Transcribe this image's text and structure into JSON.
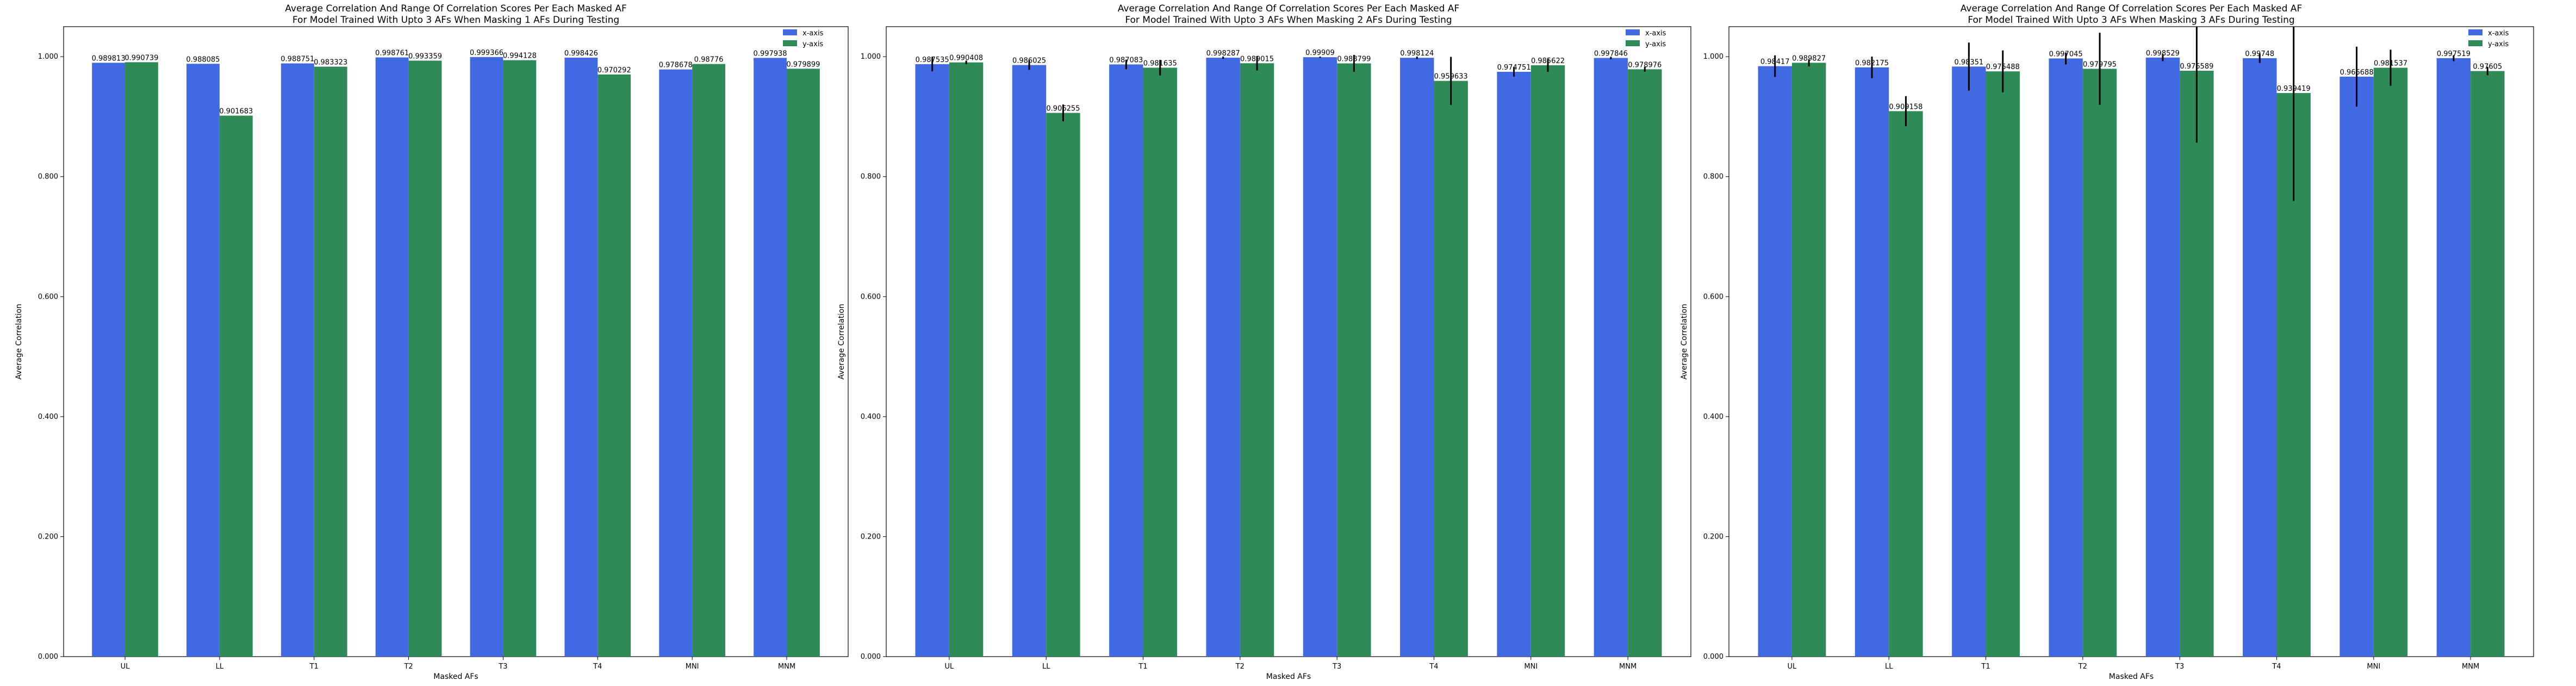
{
  "chart_data": [
    {
      "type": "bar",
      "title": "Average Correlation And Range Of Correlation Scores Per Each Masked AF",
      "subtitle": "For Model Trained With Upto 3 AFs When Masking 1 AFs During Testing",
      "xlabel": "Masked AFs",
      "ylabel": "Average Correlation",
      "ylim": [
        0,
        1.05
      ],
      "yticks": [
        "0.000",
        "0.200",
        "0.400",
        "0.600",
        "0.800",
        "1.000"
      ],
      "categories": [
        "UL",
        "LL",
        "T1",
        "T2",
        "T3",
        "T4",
        "MNI",
        "MNM"
      ],
      "legend_position": "top-right",
      "series": [
        {
          "name": "x-axis",
          "color": "#4169E1",
          "values": [
            0.989813,
            0.988085,
            0.988751,
            0.998761,
            0.999366,
            0.998426,
            0.978678,
            0.997938
          ],
          "labels": [
            "0.989813",
            "0.988085",
            "0.988751",
            "0.998761",
            "0.999366",
            "0.998426",
            "0.978678",
            "0.997938"
          ],
          "error": [
            0,
            0,
            0,
            0,
            0,
            0,
            0,
            0
          ]
        },
        {
          "name": "y-axis",
          "color": "#2E8B57",
          "values": [
            0.990739,
            0.901683,
            0.983323,
            0.993359,
            0.994128,
            0.970292,
            0.98776,
            0.979899
          ],
          "labels": [
            "0.990739",
            "0.901683",
            "0.983323",
            "0.993359",
            "0.994128",
            "0.970292",
            "0.98776",
            "0.979899"
          ],
          "error": [
            0,
            0,
            0,
            0,
            0,
            0,
            0,
            0
          ]
        }
      ]
    },
    {
      "type": "bar",
      "title": "Average Correlation And Range Of Correlation Scores Per Each Masked AF",
      "subtitle": "For Model Trained With Upto 3 AFs When Masking 2 AFs During Testing",
      "xlabel": "Masked AFs",
      "ylabel": "Average Correlation",
      "ylim": [
        0,
        1.05
      ],
      "yticks": [
        "0.000",
        "0.200",
        "0.400",
        "0.600",
        "0.800",
        "1.000"
      ],
      "categories": [
        "UL",
        "LL",
        "T1",
        "T2",
        "T3",
        "T4",
        "MNI",
        "MNM"
      ],
      "legend_position": "top-right",
      "series": [
        {
          "name": "x-axis",
          "color": "#4169E1",
          "values": [
            0.987535,
            0.986025,
            0.987083,
            0.998287,
            0.99909,
            0.998124,
            0.974751,
            0.997846
          ],
          "labels": [
            "0.987535",
            "0.986025",
            "0.987083",
            "0.998287",
            "0.99909",
            "0.998124",
            "0.974751",
            "0.997846"
          ],
          "error": [
            0.012,
            0.008,
            0.008,
            0.002,
            0.001,
            0.002,
            0.008,
            0.002
          ]
        },
        {
          "name": "y-axis",
          "color": "#2E8B57",
          "values": [
            0.990408,
            0.906255,
            0.981635,
            0.989015,
            0.988799,
            0.959633,
            0.985622,
            0.978976
          ],
          "labels": [
            "0.990408",
            "0.906255",
            "0.981635",
            "0.989015",
            "0.988799",
            "0.959633",
            "0.985622",
            "0.978976"
          ],
          "error": [
            0.003,
            0.014,
            0.013,
            0.012,
            0.014,
            0.04,
            0.011,
            0.004
          ]
        }
      ]
    },
    {
      "type": "bar",
      "title": "Average Correlation And Range Of Correlation Scores Per Each Masked AF",
      "subtitle": "For Model Trained With Upto 3 AFs When Masking 3 AFs During Testing",
      "xlabel": "Masked AFs",
      "ylabel": "Average Correlation",
      "ylim": [
        0,
        1.05
      ],
      "yticks": [
        "0.000",
        "0.200",
        "0.400",
        "0.600",
        "0.800",
        "1.000"
      ],
      "categories": [
        "UL",
        "LL",
        "T1",
        "T2",
        "T3",
        "T4",
        "MNI",
        "MNM"
      ],
      "legend_position": "top-right",
      "series": [
        {
          "name": "x-axis",
          "color": "#4169E1",
          "values": [
            0.98417,
            0.982175,
            0.98351,
            0.997045,
            0.998529,
            0.99748,
            0.966688,
            0.997519
          ],
          "labels": [
            "0.98417",
            "0.982175",
            "0.98351",
            "0.997045",
            "0.998529",
            "0.99748",
            "0.966688",
            "0.997519"
          ],
          "error": [
            0.018,
            0.018,
            0.04,
            0.01,
            0.006,
            0.008,
            0.05,
            0.005
          ]
        },
        {
          "name": "y-axis",
          "color": "#2E8B57",
          "values": [
            0.989827,
            0.909158,
            0.975488,
            0.979795,
            0.976589,
            0.939419,
            0.981537,
            0.97605
          ],
          "labels": [
            "0.989827",
            "0.909158",
            "0.975488",
            "0.979795",
            "0.976589",
            "0.939419",
            "0.981537",
            "0.97605"
          ],
          "error": [
            0.006,
            0.025,
            0.035,
            0.06,
            0.12,
            0.18,
            0.03,
            0.007
          ]
        }
      ]
    }
  ]
}
